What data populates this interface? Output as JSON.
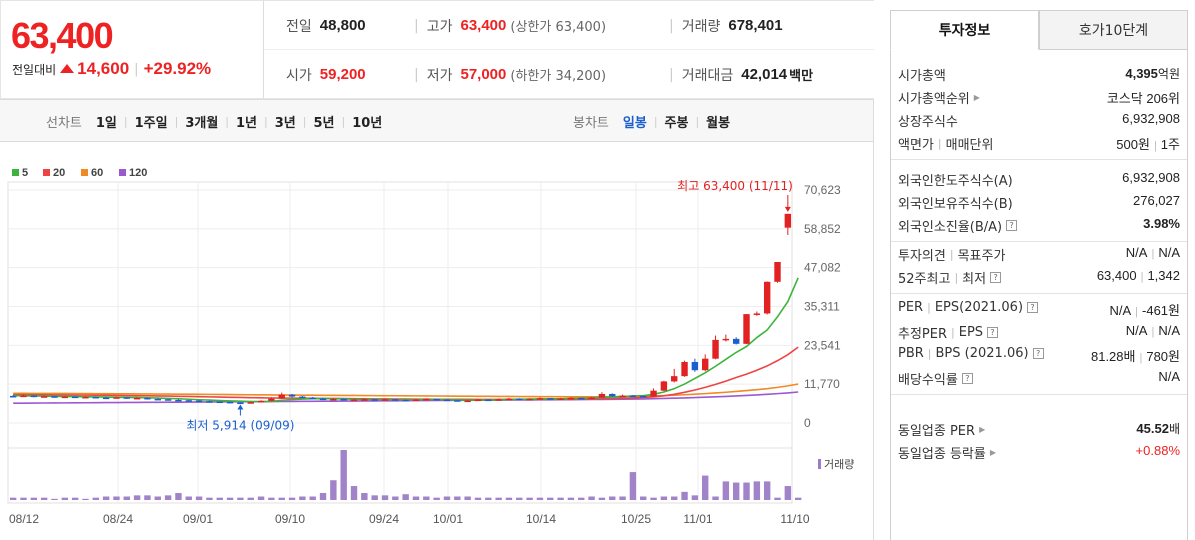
{
  "price": {
    "current": "63,400",
    "change_label": "전일대비",
    "change_abs": "14,600",
    "change_rate": "+29.92%",
    "colors": {
      "up": "#e22222",
      "down": "#1b5fcf"
    }
  },
  "stats": {
    "prev": {
      "label": "전일",
      "value": "48,800"
    },
    "high": {
      "label": "고가",
      "value": "63,400",
      "sub": "(상한가 63,400)"
    },
    "volume": {
      "label": "거래량",
      "value": "678,401"
    },
    "open": {
      "label": "시가",
      "value": "59,200"
    },
    "low": {
      "label": "저가",
      "value": "57,000",
      "sub": "(하한가 34,200)"
    },
    "amount": {
      "label": "거래대금",
      "value": "42,014",
      "unit": "백만"
    }
  },
  "toolbar": {
    "line_title": "선차트",
    "line_items": [
      "1일",
      "1주일",
      "3개월",
      "1년",
      "3년",
      "5년",
      "10년"
    ],
    "candle_title": "봉차트",
    "candle_items": [
      "일봉",
      "주봉",
      "월봉"
    ],
    "candle_active": "일봉"
  },
  "chart_data": {
    "type": "candlestick",
    "legend": [
      {
        "name": "5",
        "color": "#3cb43c"
      },
      {
        "name": "20",
        "color": "#ee4444"
      },
      {
        "name": "60",
        "color": "#f08a24"
      },
      {
        "name": "120",
        "color": "#9b59d0"
      }
    ],
    "y_ticks": [
      "70,623",
      "58,852",
      "47,082",
      "35,311",
      "23,541",
      "11,770",
      "0"
    ],
    "y_range": [
      0,
      70623
    ],
    "x_ticks": [
      "08/12",
      "08/24",
      "09/01",
      "09/10",
      "09/24",
      "10/01",
      "10/14",
      "10/25",
      "11/01",
      "11/10"
    ],
    "volume_label": "거래량",
    "high_annotation": "최고 63,400 (11/11)",
    "low_annotation": "최저 5,914 (09/09)",
    "candles": [
      {
        "o": 8200,
        "c": 8100,
        "h": 8500,
        "l": 7900
      },
      {
        "o": 8100,
        "c": 8300,
        "h": 8600,
        "l": 7900
      },
      {
        "o": 8300,
        "c": 8000,
        "h": 8400,
        "l": 7800
      },
      {
        "o": 8000,
        "c": 8100,
        "h": 8300,
        "l": 7800
      },
      {
        "o": 8100,
        "c": 7900,
        "h": 8200,
        "l": 7700
      },
      {
        "o": 7900,
        "c": 8000,
        "h": 8200,
        "l": 7700
      },
      {
        "o": 8000,
        "c": 7800,
        "h": 8100,
        "l": 7600
      },
      {
        "o": 7800,
        "c": 7900,
        "h": 8100,
        "l": 7600
      },
      {
        "o": 7900,
        "c": 7700,
        "h": 8000,
        "l": 7500
      },
      {
        "o": 7700,
        "c": 7600,
        "h": 7900,
        "l": 7400
      },
      {
        "o": 7600,
        "c": 7800,
        "h": 8000,
        "l": 7400
      },
      {
        "o": 7800,
        "c": 7500,
        "h": 7900,
        "l": 7300
      },
      {
        "o": 7500,
        "c": 7600,
        "h": 7800,
        "l": 7300
      },
      {
        "o": 7600,
        "c": 7300,
        "h": 7700,
        "l": 7100
      },
      {
        "o": 7300,
        "c": 7200,
        "h": 7500,
        "l": 7000
      },
      {
        "o": 7200,
        "c": 7000,
        "h": 7300,
        "l": 6800
      },
      {
        "o": 7000,
        "c": 6900,
        "h": 7200,
        "l": 6700
      },
      {
        "o": 6900,
        "c": 6800,
        "h": 7000,
        "l": 6600
      },
      {
        "o": 6800,
        "c": 6600,
        "h": 6900,
        "l": 6400
      },
      {
        "o": 6600,
        "c": 6500,
        "h": 6800,
        "l": 6300
      },
      {
        "o": 6500,
        "c": 6400,
        "h": 6600,
        "l": 6200
      },
      {
        "o": 6400,
        "c": 6200,
        "h": 6500,
        "l": 6000
      },
      {
        "o": 6200,
        "c": 6100,
        "h": 6300,
        "l": 5914
      },
      {
        "o": 6100,
        "c": 6300,
        "h": 6400,
        "l": 6000
      },
      {
        "o": 6300,
        "c": 6700,
        "h": 6900,
        "l": 6200
      },
      {
        "o": 6700,
        "c": 7400,
        "h": 7800,
        "l": 6600
      },
      {
        "o": 7400,
        "c": 8600,
        "h": 9200,
        "l": 7300
      },
      {
        "o": 8600,
        "c": 8000,
        "h": 8800,
        "l": 7700
      },
      {
        "o": 8000,
        "c": 7700,
        "h": 8200,
        "l": 7500
      },
      {
        "o": 7700,
        "c": 7400,
        "h": 7900,
        "l": 7200
      },
      {
        "o": 7400,
        "c": 7200,
        "h": 7600,
        "l": 7000
      },
      {
        "o": 7200,
        "c": 7300,
        "h": 7500,
        "l": 7000
      },
      {
        "o": 7300,
        "c": 7000,
        "h": 7400,
        "l": 6900
      },
      {
        "o": 7000,
        "c": 7100,
        "h": 7300,
        "l": 6900
      },
      {
        "o": 7100,
        "c": 7200,
        "h": 7400,
        "l": 6900
      },
      {
        "o": 7200,
        "c": 7000,
        "h": 7300,
        "l": 6800
      },
      {
        "o": 7000,
        "c": 7200,
        "h": 7400,
        "l": 6900
      },
      {
        "o": 7200,
        "c": 7000,
        "h": 7300,
        "l": 6800
      },
      {
        "o": 7000,
        "c": 6900,
        "h": 7100,
        "l": 6700
      },
      {
        "o": 6900,
        "c": 7100,
        "h": 7300,
        "l": 6800
      },
      {
        "o": 7100,
        "c": 7300,
        "h": 7500,
        "l": 7000
      },
      {
        "o": 7300,
        "c": 7100,
        "h": 7400,
        "l": 6900
      },
      {
        "o": 7100,
        "c": 6900,
        "h": 7200,
        "l": 6700
      },
      {
        "o": 6900,
        "c": 6700,
        "h": 7000,
        "l": 6500
      },
      {
        "o": 6700,
        "c": 6800,
        "h": 7000,
        "l": 6500
      },
      {
        "o": 6800,
        "c": 7100,
        "h": 7300,
        "l": 6700
      },
      {
        "o": 7100,
        "c": 7000,
        "h": 7200,
        "l": 6800
      },
      {
        "o": 7000,
        "c": 7200,
        "h": 7400,
        "l": 6900
      },
      {
        "o": 7200,
        "c": 7400,
        "h": 7600,
        "l": 7100
      },
      {
        "o": 7400,
        "c": 7200,
        "h": 7500,
        "l": 7000
      },
      {
        "o": 7200,
        "c": 7300,
        "h": 7500,
        "l": 7100
      },
      {
        "o": 7300,
        "c": 7500,
        "h": 7700,
        "l": 7200
      },
      {
        "o": 7500,
        "c": 7300,
        "h": 7600,
        "l": 7100
      },
      {
        "o": 7300,
        "c": 7400,
        "h": 7600,
        "l": 7200
      },
      {
        "o": 7400,
        "c": 7600,
        "h": 7800,
        "l": 7300
      },
      {
        "o": 7600,
        "c": 7500,
        "h": 7700,
        "l": 7300
      },
      {
        "o": 7500,
        "c": 7700,
        "h": 7900,
        "l": 7400
      },
      {
        "o": 7700,
        "c": 8800,
        "h": 9300,
        "l": 7600
      },
      {
        "o": 8800,
        "c": 8100,
        "h": 9000,
        "l": 7900
      },
      {
        "o": 8100,
        "c": 8300,
        "h": 8600,
        "l": 7900
      },
      {
        "o": 8300,
        "c": 8200,
        "h": 8500,
        "l": 8000
      },
      {
        "o": 8200,
        "c": 8000,
        "h": 8400,
        "l": 7900
      },
      {
        "o": 8000,
        "c": 9800,
        "h": 10500,
        "l": 7900
      },
      {
        "o": 9800,
        "c": 12600,
        "h": 12800,
        "l": 9700
      },
      {
        "o": 12600,
        "c": 14200,
        "h": 16400,
        "l": 12300
      },
      {
        "o": 14200,
        "c": 18500,
        "h": 18900,
        "l": 14000
      },
      {
        "o": 18500,
        "c": 16000,
        "h": 19500,
        "l": 15500
      },
      {
        "o": 16000,
        "c": 19500,
        "h": 20800,
        "l": 15700
      },
      {
        "o": 19500,
        "c": 25200,
        "h": 26500,
        "l": 19300
      },
      {
        "o": 25200,
        "c": 25500,
        "h": 26800,
        "l": 24700
      },
      {
        "o": 25500,
        "c": 24000,
        "h": 26000,
        "l": 23800
      },
      {
        "o": 24000,
        "c": 33000,
        "h": 33000,
        "l": 23900
      },
      {
        "o": 33000,
        "c": 33200,
        "h": 33800,
        "l": 32500
      },
      {
        "o": 33200,
        "c": 42800,
        "h": 42900,
        "l": 32900
      },
      {
        "o": 42800,
        "c": 48800,
        "h": 48800,
        "l": 42500
      },
      {
        "o": 59200,
        "c": 63400,
        "h": 63400,
        "l": 57000
      }
    ],
    "ma5": [
      8300,
      8250,
      8200,
      8150,
      8100,
      8050,
      8000,
      7950,
      7900,
      7850,
      7800,
      7750,
      7700,
      7650,
      7550,
      7450,
      7350,
      7200,
      7050,
      6950,
      6800,
      6700,
      6600,
      6500,
      6450,
      6550,
      6900,
      7100,
      7250,
      7350,
      7400,
      7350,
      7300,
      7200,
      7150,
      7100,
      7100,
      7050,
      7050,
      7050,
      7100,
      7100,
      7050,
      7000,
      6950,
      6950,
      6950,
      7000,
      7100,
      7200,
      7250,
      7300,
      7350,
      7350,
      7450,
      7500,
      7550,
      7800,
      7900,
      8000,
      8200,
      8300,
      8700,
      9400,
      10400,
      11800,
      13500,
      15200,
      17200,
      19300,
      21400,
      23200,
      25900,
      28200,
      32200,
      36800,
      44000
    ],
    "ma20": [
      8600,
      8580,
      8560,
      8540,
      8520,
      8500,
      8470,
      8450,
      8420,
      8390,
      8360,
      8330,
      8290,
      8250,
      8200,
      8150,
      8100,
      8040,
      7980,
      7920,
      7860,
      7800,
      7740,
      7680,
      7620,
      7580,
      7560,
      7540,
      7520,
      7490,
      7460,
      7430,
      7400,
      7370,
      7340,
      7310,
      7290,
      7270,
      7250,
      7230,
      7210,
      7200,
      7190,
      7180,
      7170,
      7160,
      7160,
      7160,
      7170,
      7180,
      7190,
      7200,
      7220,
      7240,
      7270,
      7300,
      7340,
      7400,
      7450,
      7500,
      7600,
      7750,
      7950,
      8250,
      8700,
      9300,
      10000,
      10800,
      11700,
      12700,
      13800,
      14800,
      16000,
      17300,
      18900,
      20700,
      23000
    ],
    "ma60": [
      9000,
      8990,
      8980,
      8970,
      8960,
      8950,
      8940,
      8920,
      8900,
      8880,
      8860,
      8840,
      8820,
      8800,
      8780,
      8760,
      8740,
      8720,
      8700,
      8680,
      8650,
      8620,
      8590,
      8560,
      8530,
      8500,
      8480,
      8460,
      8440,
      8420,
      8400,
      8380,
      8360,
      8340,
      8320,
      8300,
      8280,
      8260,
      8240,
      8220,
      8200,
      8180,
      8160,
      8140,
      8120,
      8100,
      8080,
      8060,
      8040,
      8020,
      8000,
      7990,
      7980,
      7970,
      7960,
      7950,
      7950,
      7960,
      7980,
      8000,
      8050,
      8120,
      8200,
      8300,
      8420,
      8560,
      8720,
      8900,
      9100,
      9320,
      9560,
      9820,
      10100,
      10400,
      10800,
      11250,
      11800
    ],
    "ma120": [
      6000,
      6020,
      6040,
      6060,
      6080,
      6100,
      6120,
      6140,
      6160,
      6180,
      6200,
      6220,
      6240,
      6260,
      6280,
      6300,
      6320,
      6340,
      6360,
      6380,
      6400,
      6420,
      6440,
      6460,
      6480,
      6500,
      6520,
      6540,
      6560,
      6580,
      6600,
      6620,
      6640,
      6660,
      6680,
      6700,
      6720,
      6740,
      6760,
      6780,
      6800,
      6820,
      6840,
      6860,
      6880,
      6900,
      6920,
      6940,
      6960,
      6980,
      7000,
      7020,
      7040,
      7060,
      7080,
      7100,
      7120,
      7150,
      7180,
      7210,
      7250,
      7300,
      7360,
      7430,
      7510,
      7600,
      7700,
      7810,
      7930,
      8060,
      8200,
      8350,
      8520,
      8700,
      8900,
      9120,
      9400
    ],
    "volume": [
      2,
      2,
      2,
      2,
      1,
      2,
      2,
      1,
      2,
      3,
      3,
      3,
      4,
      4,
      3,
      4,
      6,
      3,
      3,
      2,
      2,
      2,
      2,
      2,
      3,
      2,
      2,
      2,
      3,
      3,
      6,
      17,
      43,
      12,
      6,
      4,
      4,
      3,
      5,
      3,
      3,
      2,
      3,
      3,
      3,
      2,
      2,
      2,
      2,
      2,
      2,
      2,
      2,
      2,
      2,
      2,
      3,
      2,
      3,
      3,
      24,
      3,
      2,
      3,
      3,
      7,
      4,
      21,
      3,
      16,
      15,
      15,
      16,
      16,
      2,
      12,
      2
    ]
  },
  "side": {
    "tabs": [
      "투자정보",
      "호가10단계"
    ],
    "active_tab": "투자정보",
    "group1": [
      {
        "k": "시가총액",
        "v": "4,395",
        "u": "억원",
        "bold": true
      },
      {
        "k": "시가총액순위",
        "arrow": true,
        "v": "코스닥 206위"
      },
      {
        "k": "상장주식수",
        "v": "6,932,908"
      },
      {
        "k": "액면가",
        "k2": "매매단위",
        "v": "500원",
        "v2": "1주"
      }
    ],
    "group2": [
      {
        "k": "외국인한도주식수(A)",
        "v": "6,932,908"
      },
      {
        "k": "외국인보유주식수(B)",
        "v": "276,027"
      },
      {
        "k": "외국인소진율(B/A)",
        "help": true,
        "v": "3.98%",
        "bold": true
      }
    ],
    "group3": [
      {
        "k": "투자의견",
        "k2": "목표주가",
        "v": "N/A",
        "v2": "N/A"
      },
      {
        "k": "52주최고",
        "k2": "최저",
        "help": true,
        "v": "63,400",
        "v2": "1,342"
      }
    ],
    "group4": [
      {
        "k": "PER",
        "k2": "EPS(2021.06)",
        "help": true,
        "v": "N/A",
        "v2": "-461원"
      },
      {
        "k": "추정PER",
        "k2": "EPS",
        "help": true,
        "v": "N/A",
        "v2": "N/A"
      },
      {
        "k": "PBR",
        "k2": "BPS (2021.06)",
        "help": true,
        "v": "81.28배",
        "v2": "780원"
      },
      {
        "k": "배당수익률",
        "help": true,
        "v": "N/A"
      }
    ],
    "group5": [
      {
        "k": "동일업종 PER",
        "arrow": true,
        "v": "45.52",
        "u": "배",
        "bold": true
      },
      {
        "k": "동일업종 등락률",
        "arrow": true,
        "v": "+0.88%",
        "red": true
      }
    ]
  }
}
